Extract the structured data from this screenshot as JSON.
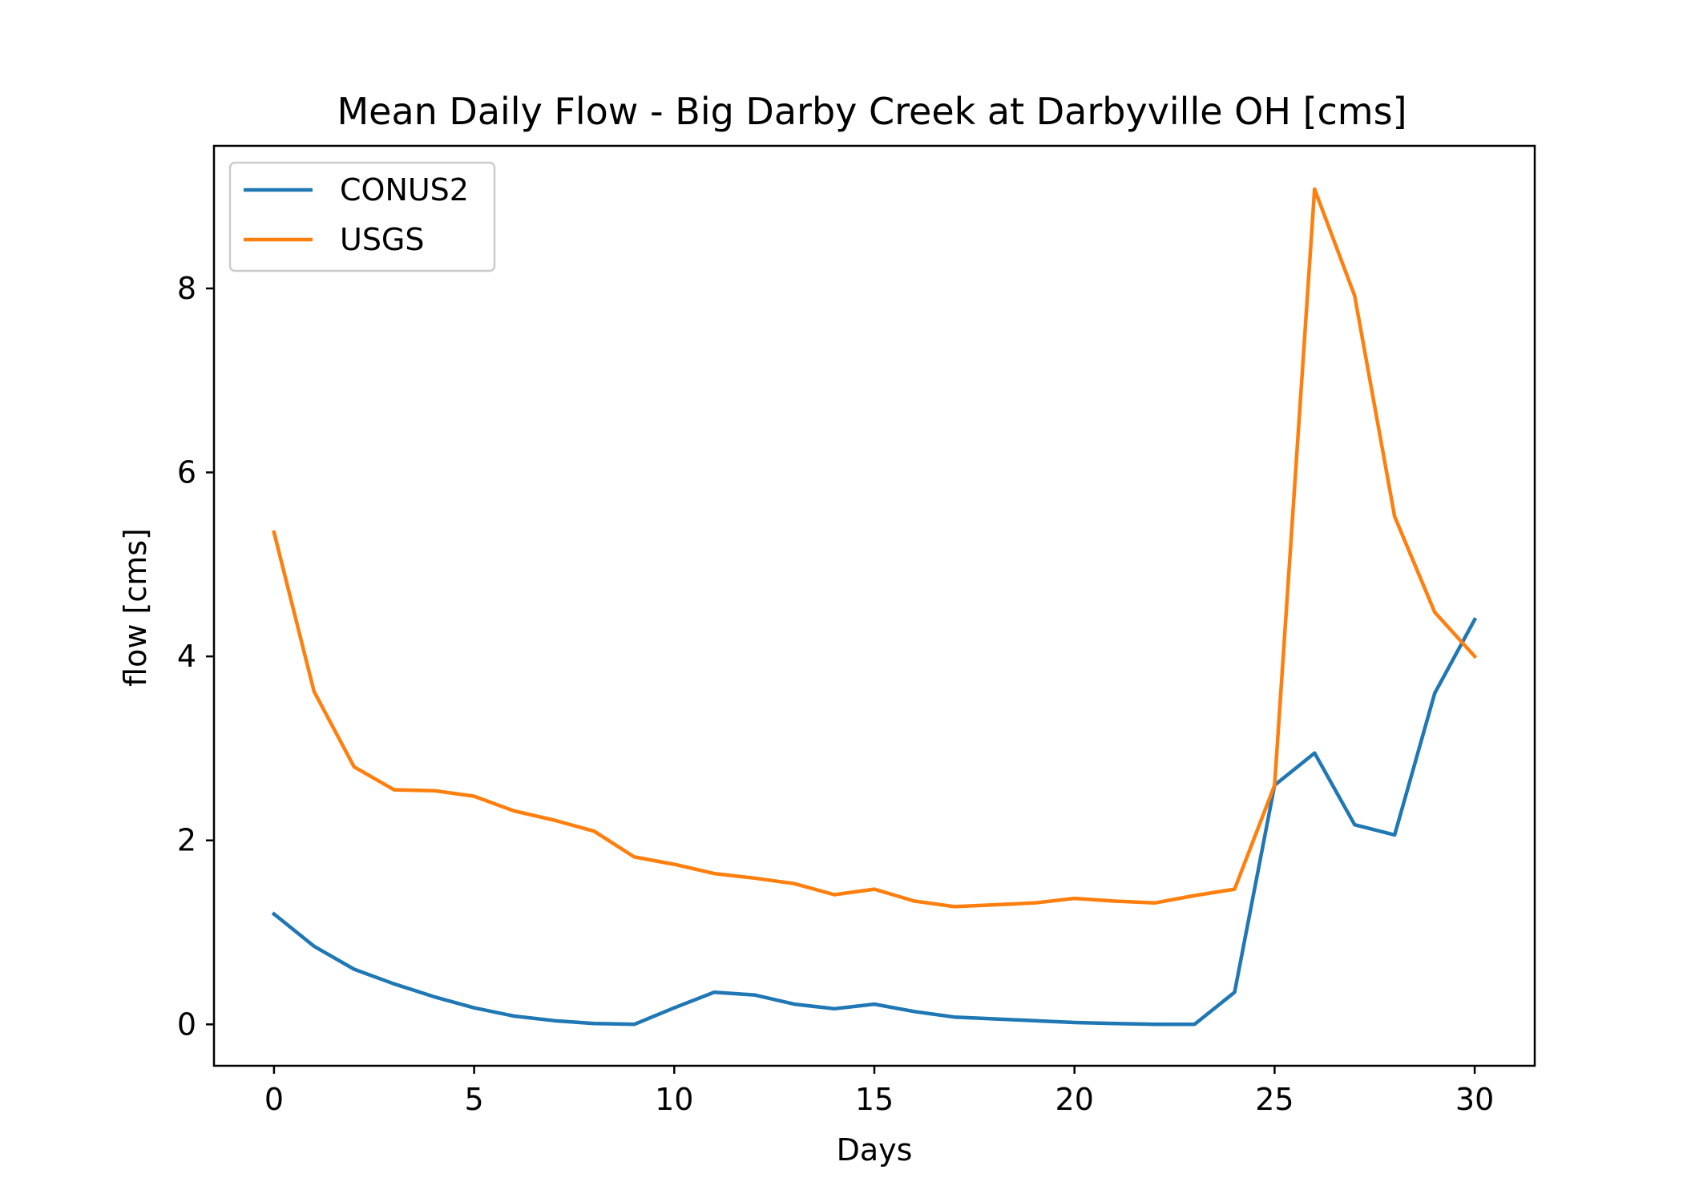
{
  "chart_data": {
    "type": "line",
    "title": "Mean Daily Flow - Big Darby Creek at Darbyville OH [cms]",
    "xlabel": "Days",
    "ylabel": "flow [cms]",
    "xlim": [
      -1.5,
      31.5
    ],
    "ylim": [
      -0.45,
      9.55
    ],
    "xticks": [
      0,
      5,
      10,
      15,
      20,
      25,
      30
    ],
    "yticks": [
      0,
      2,
      4,
      6,
      8
    ],
    "grid": false,
    "legend_position": "upper-left",
    "x": [
      0,
      1,
      2,
      3,
      4,
      5,
      6,
      7,
      8,
      9,
      10,
      11,
      12,
      13,
      14,
      15,
      16,
      17,
      18,
      19,
      20,
      21,
      22,
      23,
      24,
      25,
      26,
      27,
      28,
      29,
      30
    ],
    "series": [
      {
        "name": "CONUS2",
        "color": "#1f77b4",
        "values": [
          1.2,
          0.85,
          0.6,
          0.44,
          0.3,
          0.18,
          0.09,
          0.04,
          0.01,
          0.0,
          0.18,
          0.35,
          0.32,
          0.22,
          0.17,
          0.22,
          0.14,
          0.08,
          0.06,
          0.04,
          0.02,
          0.01,
          0.0,
          0.0,
          0.35,
          2.6,
          2.95,
          2.17,
          2.06,
          3.6,
          4.4
        ]
      },
      {
        "name": "USGS",
        "color": "#ff7f0e",
        "values": [
          5.35,
          3.62,
          2.8,
          2.55,
          2.54,
          2.48,
          2.32,
          2.22,
          2.1,
          1.82,
          1.74,
          1.64,
          1.59,
          1.53,
          1.41,
          1.47,
          1.34,
          1.28,
          1.3,
          1.32,
          1.37,
          1.34,
          1.32,
          1.4,
          1.47,
          2.6,
          9.08,
          7.92,
          5.52,
          4.48,
          4.0
        ]
      }
    ]
  }
}
